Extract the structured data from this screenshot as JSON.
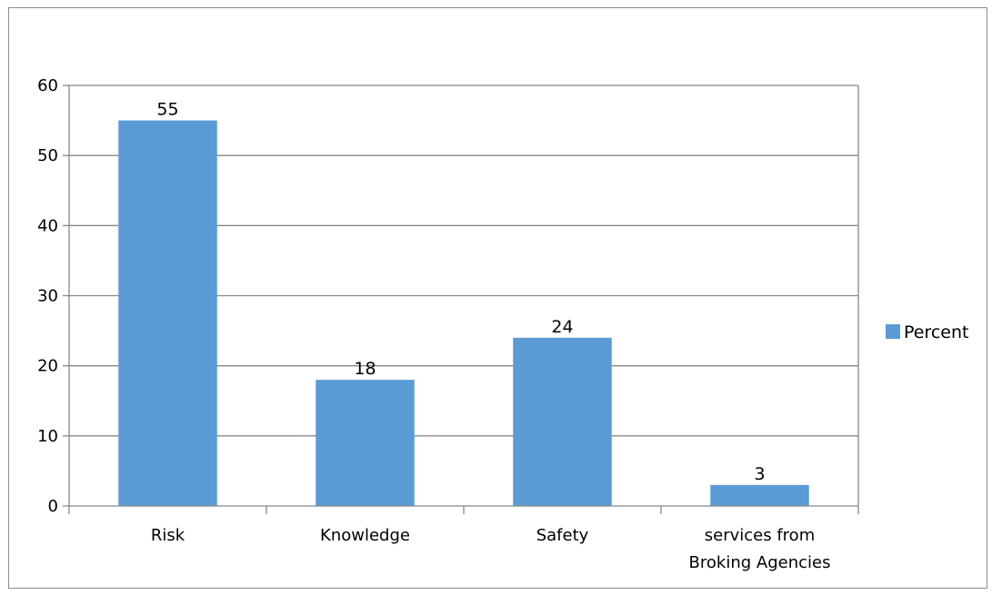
{
  "chart_data": {
    "type": "bar",
    "categories": [
      [
        "Risk"
      ],
      [
        "Knowledge"
      ],
      [
        "Safety"
      ],
      [
        "services from",
        "Broking Agencies"
      ]
    ],
    "series": [
      {
        "name": "Percent",
        "values": [
          55,
          18,
          24,
          3
        ],
        "labels": [
          "55",
          "18",
          "24",
          "3"
        ],
        "color": "#5b9bd5"
      }
    ],
    "ylim": [
      0,
      60
    ],
    "yticks": [
      0,
      10,
      20,
      30,
      40,
      50,
      60
    ],
    "grid": true,
    "legend": "right",
    "title": "",
    "xlabel": "",
    "ylabel": ""
  }
}
